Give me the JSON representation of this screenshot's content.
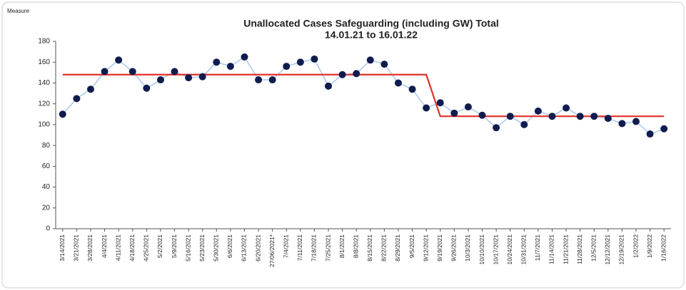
{
  "chart_data": {
    "type": "line",
    "title": [
      "Unallocated Cases Safeguarding (including GW)  Total",
      "14.01.21 to 16.01.22"
    ],
    "y_label": "Measure",
    "categories": [
      "3/14/2021",
      "3/21/2021",
      "3/28/2021",
      "4/4/2021",
      "4/11/2021",
      "4/18/2021",
      "4/25/2021",
      "5/2/2021",
      "5/9/2021",
      "5/16/2021",
      "5/23/2021",
      "5/30/2021",
      "6/6/2021",
      "6/13/2021",
      "6/20/2021",
      "27/06/2021*",
      "7/4/2021",
      "7/11/2021",
      "7/18/2021",
      "7/25/2021",
      "8/1/2021",
      "8/8/2021",
      "8/15/2021",
      "8/22/2021",
      "8/29/2021",
      "9/5/2021",
      "9/12/2021",
      "9/19/2021",
      "9/26/2021",
      "10/3/2021",
      "10/10/2021",
      "10/17/2021",
      "10/24/2021",
      "10/31/2021",
      "11/7/2021",
      "11/14/2021",
      "11/21/2021",
      "11/28/2021",
      "12/5/2021",
      "12/12/2021",
      "12/19/2021",
      "1/2/2022",
      "1/9/2022",
      "1/16/2022"
    ],
    "series": [
      {
        "color": "#a9c9ea",
        "marker_color": "#101c4e",
        "values": [
          110,
          125,
          134,
          151,
          162,
          151,
          135,
          143,
          151,
          145,
          146,
          160,
          156,
          165,
          143,
          143,
          156,
          160,
          163,
          137,
          148,
          149,
          162,
          158,
          140,
          134,
          116,
          121,
          111,
          117,
          109,
          97,
          108,
          100,
          113,
          108,
          116,
          108,
          108,
          106,
          101,
          103,
          91,
          96
        ]
      },
      {
        "color": "#e0302c",
        "values": [
          148,
          148,
          148,
          148,
          148,
          148,
          148,
          148,
          148,
          148,
          148,
          148,
          148,
          148,
          148,
          148,
          148,
          148,
          148,
          148,
          148,
          148,
          148,
          148,
          148,
          148,
          148,
          108,
          108,
          108,
          108,
          108,
          108,
          108,
          108,
          108,
          108,
          108,
          108,
          108,
          108,
          108,
          108,
          108
        ]
      }
    ],
    "ylim": [
      0,
      180
    ],
    "yticks": [
      0,
      20,
      40,
      60,
      80,
      100,
      120,
      140,
      160,
      180
    ],
    "grid": false
  }
}
